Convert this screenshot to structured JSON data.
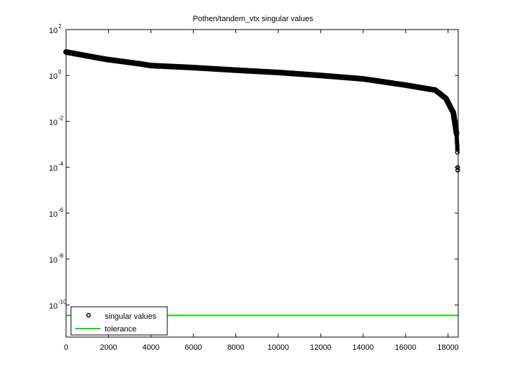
{
  "chart_data": {
    "type": "scatter",
    "title": "Pothen/tandem_vtx singular values",
    "xlabel": "",
    "ylabel": "",
    "xscale": "linear",
    "yscale": "log",
    "xlim": [
      0,
      18480
    ],
    "ylim_log10": [
      -11.4,
      2
    ],
    "x_ticks": [
      0,
      2000,
      4000,
      6000,
      8000,
      10000,
      12000,
      14000,
      16000,
      18000
    ],
    "x_tick_labels": [
      "0",
      "2000",
      "4000",
      "6000",
      "8000",
      "10000",
      "12000",
      "14000",
      "16000",
      "18000"
    ],
    "y_ticks_log10": [
      2,
      0,
      -2,
      -4,
      -6,
      -8,
      -10
    ],
    "y_tick_labels": [
      {
        "base": "10",
        "exp": "2"
      },
      {
        "base": "10",
        "exp": "0"
      },
      {
        "base": "10",
        "exp": "-2"
      },
      {
        "base": "10",
        "exp": "-4"
      },
      {
        "base": "10",
        "exp": "-6"
      },
      {
        "base": "10",
        "exp": "-8"
      },
      {
        "base": "10",
        "exp": "-10"
      }
    ],
    "grid": false,
    "legend_position": "lower left",
    "series": [
      {
        "name": "singular values",
        "marker": "circle-open",
        "color": "#000000",
        "points": [
          [
            0,
            10.5
          ],
          [
            1850,
            5.1
          ],
          [
            3500,
            3.2
          ],
          [
            4000,
            2.7
          ],
          [
            6000,
            2.2
          ],
          [
            8000,
            1.7
          ],
          [
            10000,
            1.35
          ],
          [
            12000,
            1.0
          ],
          [
            14000,
            0.71
          ],
          [
            16000,
            0.38
          ],
          [
            17400,
            0.23
          ],
          [
            17900,
            0.1
          ],
          [
            18250,
            0.024
          ],
          [
            18400,
            0.0029
          ],
          [
            18440,
            0.00052
          ],
          [
            18454,
            8.5e-05
          ]
        ]
      },
      {
        "name": "tolerance",
        "line": "solid",
        "color": "#00e000",
        "value": 3.5e-11
      }
    ]
  },
  "legend": {
    "items": [
      {
        "label": "singular values"
      },
      {
        "label": "tolerance"
      }
    ]
  }
}
